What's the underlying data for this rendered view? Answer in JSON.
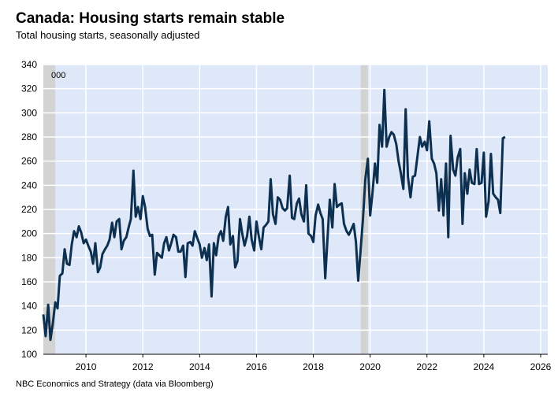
{
  "chart_data": {
    "type": "line",
    "title": "Canada: Housing starts remain stable",
    "subtitle": "Total housing starts, seasonally adjusted",
    "annotation": "000",
    "source": "NBC Economics and Strategy (data via Bloomberg)",
    "xlim": [
      2009,
      2026.75
    ],
    "xticks": [
      {
        "value": 2010.5,
        "label": "2010"
      },
      {
        "value": 2012.5,
        "label": "2012"
      },
      {
        "value": 2014.5,
        "label": "2014"
      },
      {
        "value": 2016.5,
        "label": "2016"
      },
      {
        "value": 2018.5,
        "label": "2018"
      },
      {
        "value": 2020.5,
        "label": "2020"
      },
      {
        "value": 2022.5,
        "label": "2022"
      },
      {
        "value": 2024.5,
        "label": "2024"
      },
      {
        "value": 2026.5,
        "label": "2026"
      }
    ],
    "ylim": [
      100,
      340
    ],
    "yticks": [
      100,
      120,
      140,
      160,
      180,
      200,
      220,
      240,
      260,
      280,
      300,
      320,
      340
    ],
    "grid": true,
    "shaded_periods": [
      [
        2009.0,
        2009.42
      ],
      [
        2020.17,
        2020.42
      ]
    ],
    "x": [
      2009,
      2009.08,
      2009.17,
      2009.25,
      2009.33,
      2009.42,
      2009.5,
      2009.58,
      2009.67,
      2009.75,
      2009.83,
      2009.92,
      2010,
      2010.08,
      2010.17,
      2010.25,
      2010.33,
      2010.42,
      2010.5,
      2010.58,
      2010.67,
      2010.75,
      2010.83,
      2010.92,
      2011,
      2011.08,
      2011.17,
      2011.25,
      2011.33,
      2011.42,
      2011.5,
      2011.58,
      2011.67,
      2011.75,
      2011.83,
      2011.92,
      2012,
      2012.08,
      2012.17,
      2012.25,
      2012.33,
      2012.42,
      2012.5,
      2012.58,
      2012.67,
      2012.75,
      2012.83,
      2012.92,
      2013,
      2013.08,
      2013.17,
      2013.25,
      2013.33,
      2013.42,
      2013.5,
      2013.58,
      2013.67,
      2013.75,
      2013.83,
      2013.92,
      2014,
      2014.08,
      2014.17,
      2014.25,
      2014.33,
      2014.42,
      2014.5,
      2014.58,
      2014.67,
      2014.75,
      2014.83,
      2014.92,
      2015,
      2015.08,
      2015.17,
      2015.25,
      2015.33,
      2015.42,
      2015.5,
      2015.58,
      2015.67,
      2015.75,
      2015.83,
      2015.92,
      2016,
      2016.08,
      2016.17,
      2016.25,
      2016.33,
      2016.42,
      2016.5,
      2016.58,
      2016.67,
      2016.75,
      2016.83,
      2016.92,
      2017,
      2017.08,
      2017.17,
      2017.25,
      2017.33,
      2017.42,
      2017.5,
      2017.58,
      2017.67,
      2017.75,
      2017.83,
      2017.92,
      2018,
      2018.08,
      2018.17,
      2018.25,
      2018.33,
      2018.42,
      2018.5,
      2018.58,
      2018.67,
      2018.75,
      2018.83,
      2018.92,
      2019,
      2019.08,
      2019.17,
      2019.25,
      2019.33,
      2019.42,
      2019.5,
      2019.58,
      2019.67,
      2019.75,
      2019.83,
      2019.92,
      2020,
      2020.08,
      2020.17,
      2020.25,
      2020.33,
      2020.42,
      2020.5,
      2020.58,
      2020.67,
      2020.75,
      2020.83,
      2020.92,
      2021,
      2021.08,
      2021.17,
      2021.25,
      2021.33,
      2021.42,
      2021.5,
      2021.58,
      2021.67,
      2021.75,
      2021.83,
      2021.92,
      2022,
      2022.08,
      2022.17,
      2022.25,
      2022.33,
      2022.42,
      2022.5,
      2022.58,
      2022.67,
      2022.75,
      2022.83,
      2022.92,
      2023,
      2023.08,
      2023.17,
      2023.25,
      2023.33,
      2023.42,
      2023.5,
      2023.58,
      2023.67,
      2023.75,
      2023.83,
      2023.92,
      2024,
      2024.08,
      2024.17,
      2024.25,
      2024.33,
      2024.42,
      2024.5,
      2024.58,
      2024.67,
      2024.75,
      2024.83,
      2024.92,
      2025,
      2025.08,
      2025.17,
      2025.25
    ],
    "series": [
      {
        "color": "#0d3050",
        "values": [
          133,
          115,
          141,
          112,
          125,
          143,
          138,
          165,
          167,
          187,
          175,
          174,
          191,
          202,
          197,
          206,
          201,
          192,
          195,
          190,
          185,
          175,
          192,
          168,
          172,
          183,
          187,
          190,
          195,
          209,
          197,
          210,
          212,
          187,
          194,
          197,
          205,
          212,
          252,
          214,
          222,
          212,
          231,
          222,
          204,
          198,
          199,
          166,
          184,
          182,
          180,
          192,
          197,
          186,
          192,
          199,
          197,
          185,
          185,
          190,
          164,
          192,
          193,
          190,
          202,
          196,
          191,
          180,
          188,
          178,
          191,
          148,
          192,
          182,
          198,
          202,
          194,
          214,
          222,
          191,
          198,
          172,
          177,
          212,
          200,
          190,
          198,
          214,
          195,
          186,
          210,
          198,
          187,
          205,
          207,
          210,
          245,
          216,
          208,
          230,
          228,
          221,
          219,
          221,
          248,
          213,
          212,
          225,
          229,
          216,
          210,
          240,
          200,
          198,
          193,
          215,
          224,
          217,
          212,
          163,
          196,
          228,
          205,
          241,
          222,
          224,
          225,
          208,
          202,
          199,
          203,
          208,
          193,
          161,
          188,
          213,
          245,
          262,
          215,
          233,
          258,
          242,
          290,
          272,
          319,
          272,
          280,
          284,
          282,
          274,
          260,
          250,
          237,
          303,
          247,
          230,
          247,
          248,
          265,
          280,
          272,
          276,
          269,
          293,
          262,
          258,
          250,
          219,
          245,
          215,
          258,
          197,
          281,
          253,
          248,
          263,
          270,
          208,
          250,
          233,
          253,
          242,
          241,
          270,
          241,
          242,
          267,
          214,
          227,
          266,
          233,
          230,
          228,
          217,
          279,
          280
        ]
      }
    ]
  }
}
